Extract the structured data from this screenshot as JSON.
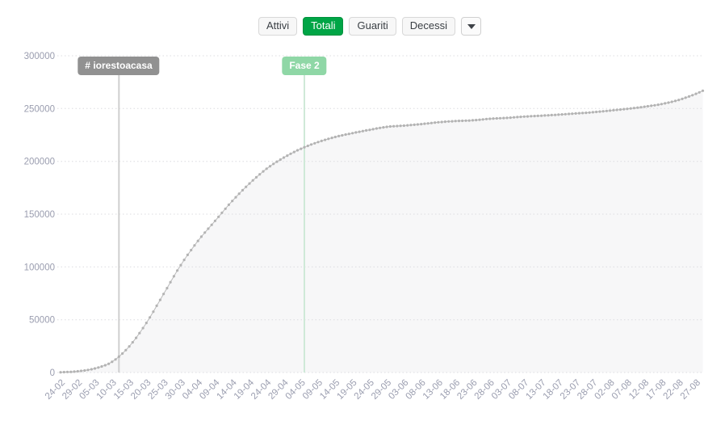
{
  "header": {
    "filter_buttons": [
      {
        "label": "Attivi",
        "active": false
      },
      {
        "label": "Totali",
        "active": true
      },
      {
        "label": "Guariti",
        "active": false
      },
      {
        "label": "Decessi",
        "active": false
      }
    ],
    "dropdown": {
      "icon": "caret-down-icon"
    }
  },
  "colors": {
    "active_button_bg": "#00a546",
    "active_button_text": "#ffffff",
    "inactive_button_bg": "#f7f7f7",
    "inactive_button_border": "#d8d8d8",
    "axis_text": "#9a9daf",
    "grid": "#dcdce0",
    "series_dot": "#b3b3b3",
    "series_line": "#bababa",
    "area_fill": "#f7f7f8",
    "annotation_gray_badge": "#919191",
    "annotation_gray_line": "#cfcfcf",
    "annotation_green_badge": "#8fd7a6",
    "annotation_green_line": "#cfe9d8"
  },
  "chart_data": {
    "type": "line",
    "title": "",
    "xlabel": "",
    "ylabel": "",
    "legend": "none",
    "grid": "horizontal-dotted",
    "ylim": [
      0,
      300000
    ],
    "y_ticks": [
      0,
      50000,
      100000,
      150000,
      200000,
      250000,
      300000
    ],
    "x_tick_interval_days": 5,
    "x_tick_labels": [
      "24-02",
      "29-02",
      "05-03",
      "10-03",
      "15-03",
      "20-03",
      "25-03",
      "30-03",
      "04-04",
      "09-04",
      "14-04",
      "19-04",
      "24-04",
      "29-04",
      "04-05",
      "09-05",
      "14-05",
      "19-05",
      "24-05",
      "29-05",
      "03-06",
      "08-06",
      "13-06",
      "18-06",
      "23-06",
      "28-06",
      "03-07",
      "08-07",
      "13-07",
      "18-07",
      "23-07",
      "28-07",
      "02-08",
      "07-08",
      "12-08",
      "17-08",
      "22-08",
      "27-08"
    ],
    "series": [
      {
        "name": "Totali",
        "marker": "dot",
        "color": "#b3b3b3",
        "points_format": "[day_index_from_24-02, cumulative_total]",
        "points": [
          [
            0,
            229
          ],
          [
            5,
            1128
          ],
          [
            10,
            3858
          ],
          [
            15,
            10149
          ],
          [
            20,
            24747
          ],
          [
            25,
            47021
          ],
          [
            30,
            74386
          ],
          [
            35,
            101739
          ],
          [
            40,
            124632
          ],
          [
            45,
            143626
          ],
          [
            50,
            162488
          ],
          [
            55,
            178972
          ],
          [
            60,
            192994
          ],
          [
            65,
            203591
          ],
          [
            70,
            211938
          ],
          [
            75,
            218268
          ],
          [
            80,
            223096
          ],
          [
            85,
            226699
          ],
          [
            90,
            229858
          ],
          [
            95,
            232664
          ],
          [
            100,
            233836
          ],
          [
            105,
            235278
          ],
          [
            110,
            236989
          ],
          [
            115,
            238159
          ],
          [
            120,
            238833
          ],
          [
            125,
            240310
          ],
          [
            130,
            241184
          ],
          [
            135,
            242363
          ],
          [
            140,
            243230
          ],
          [
            145,
            244216
          ],
          [
            150,
            245338
          ],
          [
            155,
            246488
          ],
          [
            160,
            248070
          ],
          [
            165,
            249756
          ],
          [
            170,
            251713
          ],
          [
            175,
            254235
          ],
          [
            180,
            258136
          ],
          [
            185,
            263949
          ],
          [
            187,
            266853
          ]
        ]
      }
    ],
    "annotations": [
      {
        "label": "# iorestoacasa",
        "day": 17,
        "badge_color": "#919191",
        "line_color": "#cfcfcf"
      },
      {
        "label": "Fase 2",
        "day": 71,
        "badge_color": "#8fd7a6",
        "line_color": "#cfe9d8"
      }
    ]
  }
}
